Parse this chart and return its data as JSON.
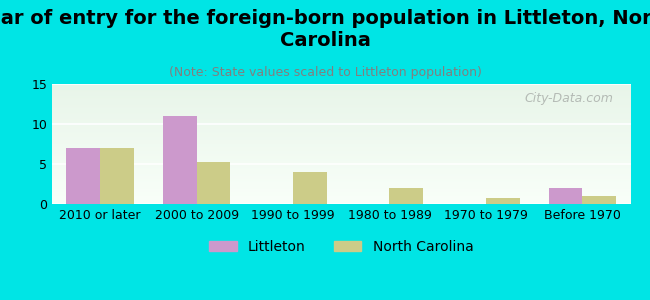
{
  "categories": [
    "2010 or later",
    "2000 to 2009",
    "1990 to 1999",
    "1980 to 1989",
    "1970 to 1979",
    "Before 1970"
  ],
  "littleton_values": [
    7,
    11,
    0,
    0,
    0,
    2
  ],
  "nc_values": [
    7,
    5.3,
    4,
    2,
    0.8,
    1
  ],
  "littleton_color": "#cc99cc",
  "nc_color": "#cccc88",
  "title": "Year of entry for the foreign-born population in Littleton, North\nCarolina",
  "subtitle": "(Note: State values scaled to Littleton population)",
  "ylabel": "",
  "ylim": [
    0,
    15
  ],
  "yticks": [
    0,
    5,
    10,
    15
  ],
  "background_color": "#00e5e5",
  "plot_bg_color_top": "#f0fff0",
  "plot_bg_color_bottom": "#ffffff",
  "watermark": "City-Data.com",
  "legend_labels": [
    "Littleton",
    "North Carolina"
  ],
  "title_fontsize": 14,
  "subtitle_fontsize": 9,
  "tick_fontsize": 9
}
